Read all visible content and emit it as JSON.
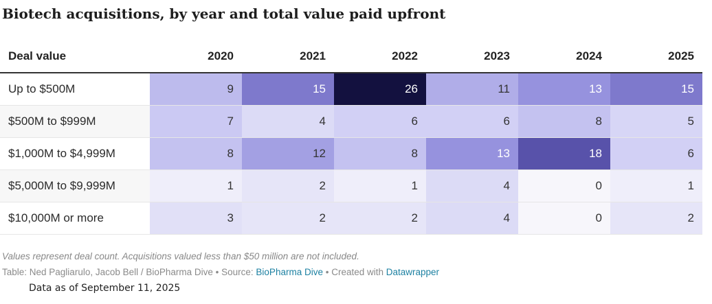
{
  "chart_data": {
    "type": "table",
    "title": "Biotech acquisitions, by year and total value paid upfront",
    "row_header": "Deal value",
    "columns": [
      "2020",
      "2021",
      "2022",
      "2023",
      "2024",
      "2025"
    ],
    "rows": [
      {
        "label": "Up to $500M",
        "values": [
          9,
          15,
          26,
          11,
          13,
          15
        ]
      },
      {
        "label": "$500M to $999M",
        "values": [
          7,
          4,
          6,
          6,
          8,
          5
        ]
      },
      {
        "label": "$1,000M to $4,999M",
        "values": [
          8,
          12,
          8,
          13,
          18,
          6
        ]
      },
      {
        "label": "$5,000M to $9,999M",
        "values": [
          1,
          2,
          1,
          4,
          0,
          1
        ]
      },
      {
        "label": "$10,000M or more",
        "values": [
          3,
          2,
          2,
          4,
          0,
          2
        ]
      }
    ],
    "color_scale": {
      "min": 0,
      "max": 26,
      "low_color": "#f7f6fb",
      "high_color": "#13113f"
    }
  },
  "footer": {
    "notes": "Values represent deal count. Acquisitions valued less than $50 million are not included.",
    "credit_prefix": "Table: Ned Pagliarulo, Jacob Bell / BioPharma Dive • Source: ",
    "source_link": "BioPharma Dive",
    "credit_middle": " • Created with ",
    "tool_link": "Datawrapper",
    "data_as_of": "Data as of September 11, 2025"
  }
}
